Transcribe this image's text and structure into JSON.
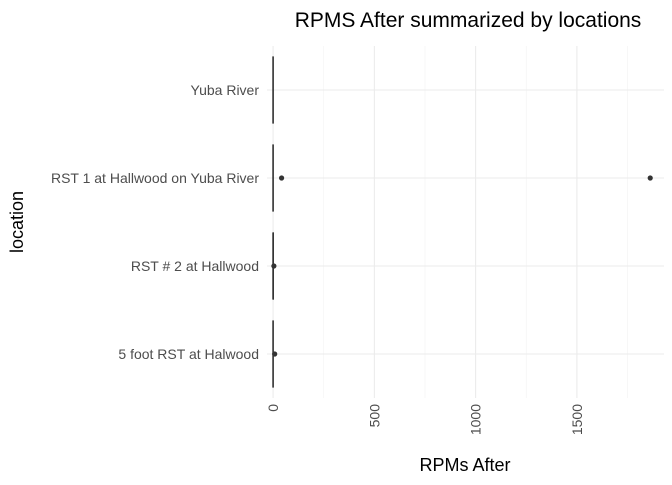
{
  "chart_data": {
    "type": "boxplot",
    "orientation": "horizontal",
    "title": "RPMS After summarized by locations",
    "xlabel": "RPMs After",
    "ylabel": "location",
    "xlim": [
      -30,
      1930
    ],
    "x_ticks": [
      0,
      500,
      1000,
      1500
    ],
    "x_tick_labels": [
      "0",
      "500",
      "1000",
      "1500"
    ],
    "x_minor_ticks": [
      250,
      750,
      1250,
      1750
    ],
    "categories": [
      "Yuba River",
      "RST 1 at Hallwood on Yuba River",
      "RST # 2 at Hallwood",
      "5 foot RST at Halwood"
    ],
    "boxes": [
      {
        "category": "Yuba River",
        "min": 0,
        "q1": 0,
        "median": 0,
        "q3": 0,
        "max": 0,
        "outliers": []
      },
      {
        "category": "RST 1 at Hallwood on Yuba River",
        "min": 0,
        "q1": 0,
        "median": 0,
        "q3": 0,
        "max": 0,
        "outliers": [
          42,
          1862
        ]
      },
      {
        "category": "RST # 2 at Hallwood",
        "min": 0,
        "q1": 0,
        "median": 0,
        "q3": 1,
        "max": 2,
        "outliers": [
          4
        ]
      },
      {
        "category": "5 foot RST at Halwood",
        "min": 0,
        "q1": 0,
        "median": 0,
        "q3": 0,
        "max": 0,
        "outliers": [
          8
        ]
      }
    ],
    "grid": true,
    "theme": "minimal",
    "colors": {
      "box_line": "#333333",
      "grid": "#ebebeb",
      "tick_text": "#4d4d4d",
      "title_text": "#000000"
    }
  }
}
